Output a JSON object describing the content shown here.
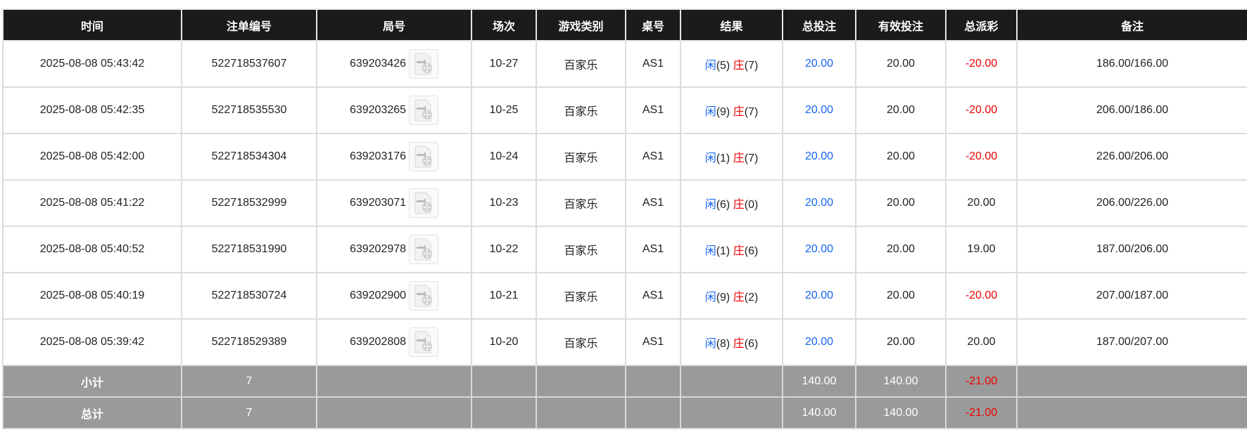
{
  "columns": [
    "时间",
    "注单编号",
    "局号",
    "场次",
    "游戏类别",
    "桌号",
    "结果",
    "总投注",
    "有效投注",
    "总派彩",
    "备注"
  ],
  "rows": [
    {
      "time": "2025-08-08 05:43:42",
      "bet_id": "522718537607",
      "round": "639203426",
      "session": "10-27",
      "game": "百家乐",
      "table": "AS1",
      "player_label": "闲",
      "player": "(5)",
      "banker_label": "庄",
      "banker": "(7)",
      "total_bet": "20.00",
      "valid_bet": "20.00",
      "payout": "-20.00",
      "payout_negative": true,
      "note": "186.00/166.00"
    },
    {
      "time": "2025-08-08 05:42:35",
      "bet_id": "522718535530",
      "round": "639203265",
      "session": "10-25",
      "game": "百家乐",
      "table": "AS1",
      "player_label": "闲",
      "player": "(9)",
      "banker_label": "庄",
      "banker": "(7)",
      "total_bet": "20.00",
      "valid_bet": "20.00",
      "payout": "-20.00",
      "payout_negative": true,
      "note": "206.00/186.00"
    },
    {
      "time": "2025-08-08 05:42:00",
      "bet_id": "522718534304",
      "round": "639203176",
      "session": "10-24",
      "game": "百家乐",
      "table": "AS1",
      "player_label": "闲",
      "player": "(1)",
      "banker_label": "庄",
      "banker": "(7)",
      "total_bet": "20.00",
      "valid_bet": "20.00",
      "payout": "-20.00",
      "payout_negative": true,
      "note": "226.00/206.00"
    },
    {
      "time": "2025-08-08 05:41:22",
      "bet_id": "522718532999",
      "round": "639203071",
      "session": "10-23",
      "game": "百家乐",
      "table": "AS1",
      "player_label": "闲",
      "player": "(6)",
      "banker_label": "庄",
      "banker": "(0)",
      "total_bet": "20.00",
      "valid_bet": "20.00",
      "payout": "20.00",
      "payout_negative": false,
      "note": "206.00/226.00"
    },
    {
      "time": "2025-08-08 05:40:52",
      "bet_id": "522718531990",
      "round": "639202978",
      "session": "10-22",
      "game": "百家乐",
      "table": "AS1",
      "player_label": "闲",
      "player": "(1)",
      "banker_label": "庄",
      "banker": "(6)",
      "total_bet": "20.00",
      "valid_bet": "20.00",
      "payout": "19.00",
      "payout_negative": false,
      "note": "187.00/206.00"
    },
    {
      "time": "2025-08-08 05:40:19",
      "bet_id": "522718530724",
      "round": "639202900",
      "session": "10-21",
      "game": "百家乐",
      "table": "AS1",
      "player_label": "闲",
      "player": "(9)",
      "banker_label": "庄",
      "banker": "(2)",
      "total_bet": "20.00",
      "valid_bet": "20.00",
      "payout": "-20.00",
      "payout_negative": true,
      "note": "207.00/187.00"
    },
    {
      "time": "2025-08-08 05:39:42",
      "bet_id": "522718529389",
      "round": "639202808",
      "session": "10-20",
      "game": "百家乐",
      "table": "AS1",
      "player_label": "闲",
      "player": "(8)",
      "banker_label": "庄",
      "banker": "(6)",
      "total_bet": "20.00",
      "valid_bet": "20.00",
      "payout": "20.00",
      "payout_negative": false,
      "note": "187.00/207.00"
    }
  ],
  "subtotal": {
    "label": "小计",
    "count": "7",
    "total_bet": "140.00",
    "valid_bet": "140.00",
    "payout": "-21.00"
  },
  "total": {
    "label": "总计",
    "count": "7",
    "total_bet": "140.00",
    "valid_bet": "140.00",
    "payout": "-21.00"
  },
  "icons": {
    "round_video": "video-file-icon"
  },
  "colors": {
    "header_bg": "#1b1b1b",
    "player": "#1565f0",
    "banker": "#f00000",
    "summary_bg": "#9a9a9a"
  }
}
